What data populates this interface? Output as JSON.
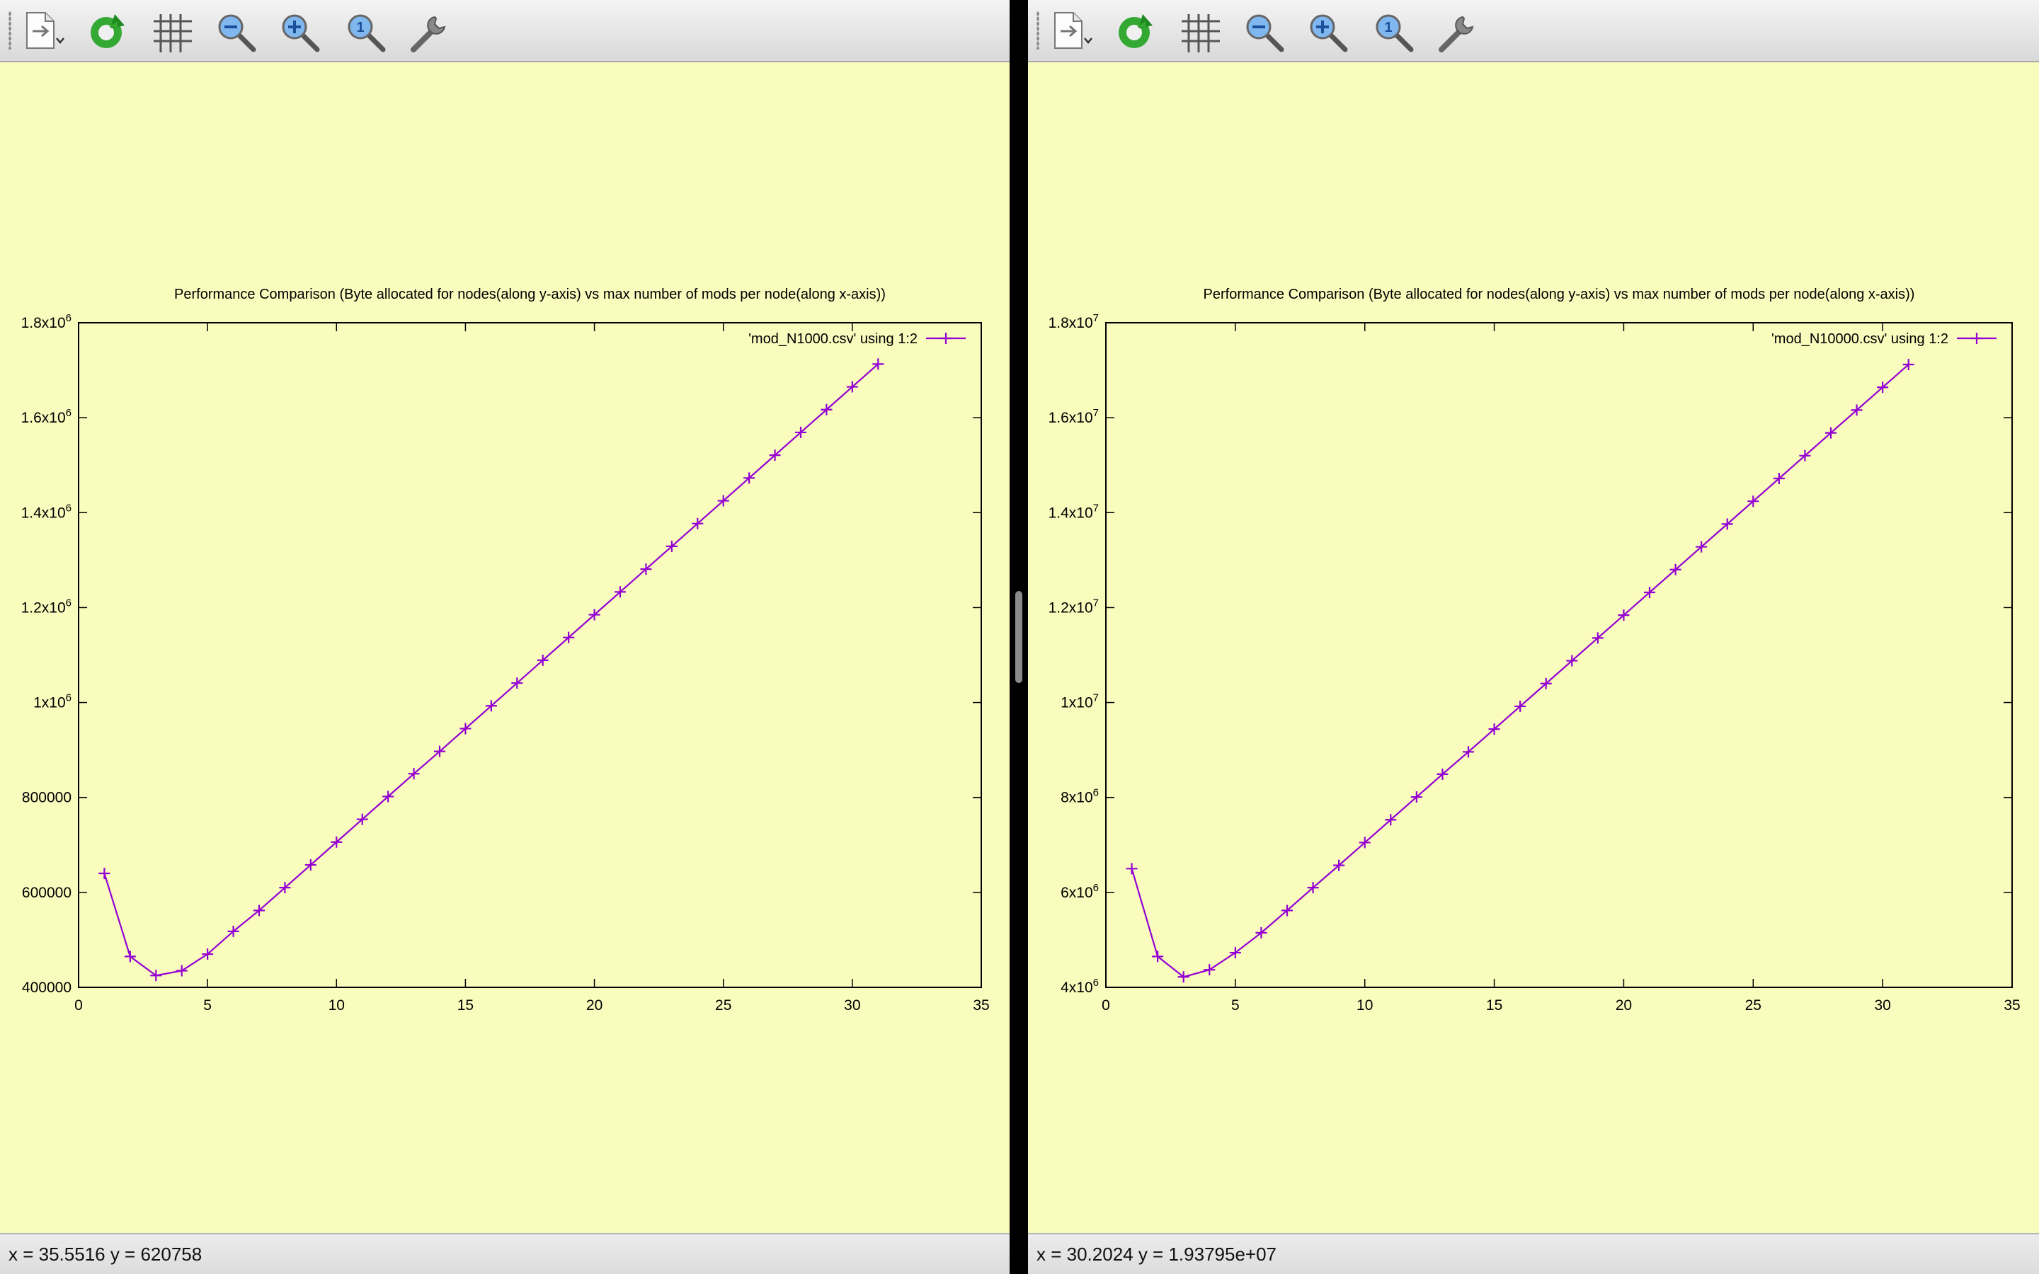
{
  "windows": [
    {
      "id": "left",
      "toolbar": {
        "icons": [
          "export-icon",
          "replot-icon",
          "grid-icon",
          "zoom-out-icon",
          "zoom-in-icon",
          "zoom-reset-icon",
          "settings-icon"
        ]
      },
      "status": "x = 35.5516 y = 620758",
      "colors": {
        "background": "#f9fcbd",
        "series": "#9400d3"
      }
    },
    {
      "id": "right",
      "toolbar": {
        "icons": [
          "export-icon",
          "replot-icon",
          "grid-icon",
          "zoom-out-icon",
          "zoom-in-icon",
          "zoom-reset-icon",
          "settings-icon"
        ]
      },
      "status": "x = 30.2024 y = 1.93795e+07",
      "colors": {
        "background": "#f9fcbd",
        "series": "#9400d3"
      }
    }
  ],
  "chart_data": [
    {
      "type": "line",
      "title": "Performance Comparison (Byte allocated for nodes(along y-axis) vs max number of mods per node(along x-axis))",
      "xlabel": "",
      "ylabel": "",
      "xlim": [
        0,
        35
      ],
      "ylim": [
        400000,
        1800000
      ],
      "x_ticks": [
        {
          "value": 0,
          "label": "0"
        },
        {
          "value": 5,
          "label": "5"
        },
        {
          "value": 10,
          "label": "10"
        },
        {
          "value": 15,
          "label": "15"
        },
        {
          "value": 20,
          "label": "20"
        },
        {
          "value": 25,
          "label": "25"
        },
        {
          "value": 30,
          "label": "30"
        },
        {
          "value": 35,
          "label": "35"
        }
      ],
      "y_ticks": [
        {
          "value": 400000,
          "label": "400000"
        },
        {
          "value": 600000,
          "label": "600000"
        },
        {
          "value": 800000,
          "label": "800000"
        },
        {
          "value": 1000000,
          "label": "1x10",
          "exp": "6"
        },
        {
          "value": 1200000,
          "label": "1.2x10",
          "exp": "6"
        },
        {
          "value": 1400000,
          "label": "1.4x10",
          "exp": "6"
        },
        {
          "value": 1600000,
          "label": "1.6x10",
          "exp": "6"
        },
        {
          "value": 1800000,
          "label": "1.8x10",
          "exp": "6"
        }
      ],
      "grid": false,
      "legend_position": "top-right",
      "series": [
        {
          "name": "'mod_N1000.csv' using 1:2",
          "color": "#9400d3",
          "marker": "plus",
          "x": [
            1,
            2,
            3,
            4,
            5,
            6,
            7,
            8,
            9,
            10,
            11,
            12,
            13,
            14,
            15,
            16,
            17,
            18,
            19,
            20,
            21,
            22,
            23,
            24,
            25,
            26,
            27,
            28,
            29,
            30,
            31
          ],
          "y": [
            640000,
            465000,
            425000,
            435000,
            470000,
            518000,
            562000,
            610000,
            658000,
            706000,
            754000,
            802000,
            850000,
            897000,
            945000,
            993000,
            1041000,
            1089000,
            1137000,
            1185000,
            1233000,
            1281000,
            1329000,
            1377000,
            1425000,
            1473000,
            1521000,
            1569000,
            1617000,
            1665000,
            1713000
          ]
        }
      ]
    },
    {
      "type": "line",
      "title": "Performance Comparison (Byte allocated for nodes(along y-axis) vs max number of mods per node(along x-axis))",
      "xlabel": "",
      "ylabel": "",
      "xlim": [
        0,
        35
      ],
      "ylim": [
        4000000,
        18000000
      ],
      "x_ticks": [
        {
          "value": 0,
          "label": "0"
        },
        {
          "value": 5,
          "label": "5"
        },
        {
          "value": 10,
          "label": "10"
        },
        {
          "value": 15,
          "label": "15"
        },
        {
          "value": 20,
          "label": "20"
        },
        {
          "value": 25,
          "label": "25"
        },
        {
          "value": 30,
          "label": "30"
        },
        {
          "value": 35,
          "label": "35"
        }
      ],
      "y_ticks": [
        {
          "value": 4000000,
          "label": "4x10",
          "exp": "6"
        },
        {
          "value": 6000000,
          "label": "6x10",
          "exp": "6"
        },
        {
          "value": 8000000,
          "label": "8x10",
          "exp": "6"
        },
        {
          "value": 10000000,
          "label": "1x10",
          "exp": "7"
        },
        {
          "value": 12000000,
          "label": "1.2x10",
          "exp": "7"
        },
        {
          "value": 14000000,
          "label": "1.4x10",
          "exp": "7"
        },
        {
          "value": 16000000,
          "label": "1.6x10",
          "exp": "7"
        },
        {
          "value": 18000000,
          "label": "1.8x10",
          "exp": "7"
        }
      ],
      "grid": false,
      "legend_position": "top-right",
      "series": [
        {
          "name": "'mod_N10000.csv' using 1:2",
          "color": "#9400d3",
          "marker": "plus",
          "x": [
            1,
            2,
            3,
            4,
            5,
            6,
            7,
            8,
            9,
            10,
            11,
            12,
            13,
            14,
            15,
            16,
            17,
            18,
            19,
            20,
            21,
            22,
            23,
            24,
            25,
            26,
            27,
            28,
            29,
            30,
            31
          ],
          "y": [
            6500000,
            4650000,
            4220000,
            4370000,
            4730000,
            5150000,
            5620000,
            6100000,
            6570000,
            7050000,
            7530000,
            8010000,
            8490000,
            8960000,
            9440000,
            9920000,
            10400000,
            10880000,
            11360000,
            11840000,
            12320000,
            12800000,
            13280000,
            13760000,
            14240000,
            14720000,
            15200000,
            15680000,
            16160000,
            16640000,
            17120000
          ]
        }
      ]
    }
  ]
}
